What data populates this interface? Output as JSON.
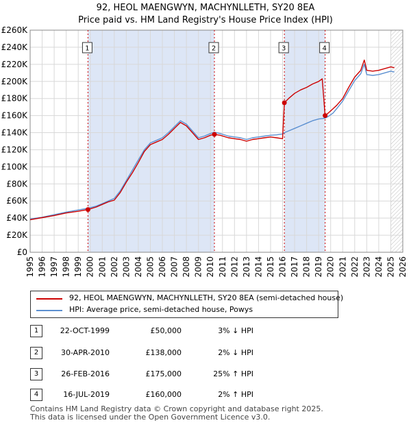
{
  "title": "92, HEOL MAENGWYN, MACHYNLLETH, SY20 8EA",
  "subtitle": "Price paid vs. HM Land Registry's House Price Index (HPI)",
  "colors": {
    "property": "#cc0000",
    "hpi": "#5b8fd0",
    "shade": "#dde6f6",
    "grid": "#d8d8d8",
    "marker_line": "#cc0000"
  },
  "chart_data": {
    "type": "line",
    "title": "92, HEOL MAENGWYN, MACHYNLLETH, SY20 8EA",
    "subtitle": "Price paid vs. HM Land Registry's House Price Index (HPI)",
    "xlim": [
      1995,
      2026
    ],
    "ylim": [
      0,
      260000
    ],
    "x_ticks": [
      "1995",
      "1996",
      "1997",
      "1998",
      "1999",
      "2000",
      "2001",
      "2002",
      "2003",
      "2004",
      "2005",
      "2006",
      "2007",
      "2008",
      "2009",
      "2010",
      "2011",
      "2012",
      "2013",
      "2014",
      "2015",
      "2016",
      "2017",
      "2018",
      "2019",
      "2020",
      "2021",
      "2022",
      "2023",
      "2024",
      "2025",
      "2026"
    ],
    "y_ticks": [
      "£0",
      "£20K",
      "£40K",
      "£60K",
      "£80K",
      "£100K",
      "£120K",
      "£140K",
      "£160K",
      "£180K",
      "£200K",
      "£220K",
      "£240K",
      "£260K"
    ],
    "y_tick_values": [
      0,
      20000,
      40000,
      60000,
      80000,
      100000,
      120000,
      140000,
      160000,
      180000,
      200000,
      220000,
      240000,
      260000
    ],
    "shaded_ranges": [
      [
        1999.81,
        2010.33
      ],
      [
        2016.15,
        2019.54
      ]
    ],
    "projection_start": 2025.0,
    "series": [
      {
        "name": "92, HEOL MAENGWYN, MACHYNLLETH, SY20 8EA (semi-detached house)",
        "points": [
          [
            1995.0,
            38000
          ],
          [
            1996.0,
            40500
          ],
          [
            1997.0,
            43000
          ],
          [
            1998.0,
            46000
          ],
          [
            1999.0,
            48000
          ],
          [
            1999.81,
            50000
          ],
          [
            2000.5,
            53000
          ],
          [
            2001.0,
            56000
          ],
          [
            2001.5,
            59000
          ],
          [
            2002.0,
            61000
          ],
          [
            2002.5,
            70000
          ],
          [
            2003.0,
            82000
          ],
          [
            2003.5,
            93000
          ],
          [
            2004.0,
            105000
          ],
          [
            2004.5,
            118000
          ],
          [
            2005.0,
            126000
          ],
          [
            2005.5,
            129000
          ],
          [
            2006.0,
            132000
          ],
          [
            2006.5,
            138000
          ],
          [
            2007.0,
            145000
          ],
          [
            2007.5,
            152000
          ],
          [
            2008.0,
            148000
          ],
          [
            2008.5,
            140000
          ],
          [
            2009.0,
            132000
          ],
          [
            2009.5,
            134000
          ],
          [
            2010.0,
            137000
          ],
          [
            2010.33,
            138000
          ],
          [
            2010.8,
            137000
          ],
          [
            2011.5,
            134000
          ],
          [
            2012.0,
            133000
          ],
          [
            2012.5,
            132000
          ],
          [
            2013.0,
            130000
          ],
          [
            2013.5,
            132000
          ],
          [
            2014.0,
            133000
          ],
          [
            2014.5,
            134000
          ],
          [
            2015.0,
            135000
          ],
          [
            2015.5,
            134000
          ],
          [
            2016.0,
            133000
          ],
          [
            2016.15,
            175000
          ],
          [
            2016.5,
            180000
          ],
          [
            2017.0,
            186000
          ],
          [
            2017.5,
            190000
          ],
          [
            2018.0,
            193000
          ],
          [
            2018.5,
            197000
          ],
          [
            2019.0,
            200000
          ],
          [
            2019.3,
            203000
          ],
          [
            2019.54,
            160000
          ],
          [
            2019.8,
            163000
          ],
          [
            2020.2,
            168000
          ],
          [
            2020.5,
            172000
          ],
          [
            2021.0,
            180000
          ],
          [
            2021.5,
            193000
          ],
          [
            2022.0,
            205000
          ],
          [
            2022.5,
            213000
          ],
          [
            2022.8,
            225000
          ],
          [
            2023.0,
            213000
          ],
          [
            2023.5,
            212000
          ],
          [
            2024.0,
            213000
          ],
          [
            2024.5,
            215000
          ],
          [
            2025.0,
            217000
          ],
          [
            2025.3,
            216000
          ]
        ]
      },
      {
        "name": "HPI: Average price, semi-detached house, Powys",
        "points": [
          [
            1995.0,
            39000
          ],
          [
            1996.0,
            41000
          ],
          [
            1997.0,
            44000
          ],
          [
            1998.0,
            47000
          ],
          [
            1999.0,
            49500
          ],
          [
            1999.81,
            51500
          ],
          [
            2000.5,
            54000
          ],
          [
            2001.0,
            57000
          ],
          [
            2001.5,
            60000
          ],
          [
            2002.0,
            63000
          ],
          [
            2002.5,
            72000
          ],
          [
            2003.0,
            84000
          ],
          [
            2003.5,
            96000
          ],
          [
            2004.0,
            108000
          ],
          [
            2004.5,
            120000
          ],
          [
            2005.0,
            128000
          ],
          [
            2005.5,
            131000
          ],
          [
            2006.0,
            134000
          ],
          [
            2006.5,
            140000
          ],
          [
            2007.0,
            147000
          ],
          [
            2007.5,
            154000
          ],
          [
            2008.0,
            150000
          ],
          [
            2008.5,
            142000
          ],
          [
            2009.0,
            134000
          ],
          [
            2009.5,
            136000
          ],
          [
            2010.0,
            139000
          ],
          [
            2010.33,
            140500
          ],
          [
            2010.8,
            139000
          ],
          [
            2011.5,
            136000
          ],
          [
            2012.0,
            135000
          ],
          [
            2012.5,
            134000
          ],
          [
            2013.0,
            132000
          ],
          [
            2013.5,
            134000
          ],
          [
            2014.0,
            135000
          ],
          [
            2014.5,
            136000
          ],
          [
            2015.0,
            137000
          ],
          [
            2015.5,
            137500
          ],
          [
            2016.0,
            138500
          ],
          [
            2016.15,
            140000
          ],
          [
            2016.5,
            142000
          ],
          [
            2017.0,
            145000
          ],
          [
            2017.5,
            148000
          ],
          [
            2018.0,
            151000
          ],
          [
            2018.5,
            154000
          ],
          [
            2019.0,
            156000
          ],
          [
            2019.54,
            157000
          ],
          [
            2019.8,
            159000
          ],
          [
            2020.2,
            163000
          ],
          [
            2020.5,
            168000
          ],
          [
            2021.0,
            177000
          ],
          [
            2021.5,
            189000
          ],
          [
            2022.0,
            201000
          ],
          [
            2022.5,
            209000
          ],
          [
            2022.8,
            220000
          ],
          [
            2023.0,
            208000
          ],
          [
            2023.5,
            207000
          ],
          [
            2024.0,
            208000
          ],
          [
            2024.5,
            210000
          ],
          [
            2025.0,
            212000
          ],
          [
            2025.3,
            211000
          ]
        ]
      }
    ],
    "transactions": [
      {
        "label": "1",
        "x": 1999.81,
        "y": 50000
      },
      {
        "label": "2",
        "x": 2010.33,
        "y": 138000
      },
      {
        "label": "3",
        "x": 2016.15,
        "y": 175000
      },
      {
        "label": "4",
        "x": 2019.54,
        "y": 160000
      }
    ]
  },
  "legend": {
    "property": "92, HEOL MAENGWYN, MACHYNLLETH, SY20 8EA (semi-detached house)",
    "hpi": "HPI: Average price, semi-detached house, Powys"
  },
  "transactions_table": [
    {
      "num": "1",
      "date": "22-OCT-1999",
      "price": "£50,000",
      "hpi": "3% ↓ HPI"
    },
    {
      "num": "2",
      "date": "30-APR-2010",
      "price": "£138,000",
      "hpi": "2% ↓ HPI"
    },
    {
      "num": "3",
      "date": "26-FEB-2016",
      "price": "£175,000",
      "hpi": "25% ↑ HPI"
    },
    {
      "num": "4",
      "date": "16-JUL-2019",
      "price": "£160,000",
      "hpi": "2% ↑ HPI"
    }
  ],
  "footer": {
    "line1": "Contains HM Land Registry data © Crown copyright and database right 2025.",
    "line2": "This data is licensed under the Open Government Licence v3.0."
  }
}
